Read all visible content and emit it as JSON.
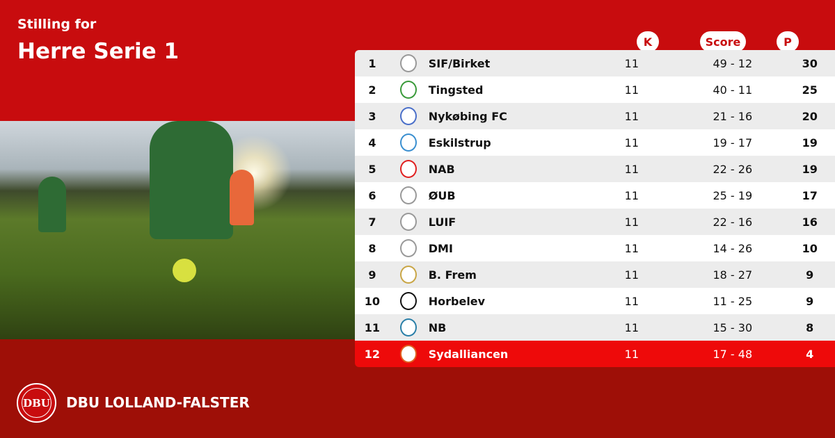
{
  "header": {
    "subtitle": "Stilling for",
    "title": "Herre Serie 1"
  },
  "columns": {
    "k": "K",
    "score": "Score",
    "p": "P"
  },
  "colors": {
    "top": "#c80c0e",
    "bottom": "#9e0f07",
    "highlight": "#ee0a0a"
  },
  "rows": [
    {
      "pos": "1",
      "team": "SIF/Birket",
      "k": "11",
      "score": "49 - 12",
      "p": "30",
      "logo": "#999"
    },
    {
      "pos": "2",
      "team": "Tingsted",
      "k": "11",
      "score": "40 - 11",
      "p": "25",
      "logo": "#3a9a3a"
    },
    {
      "pos": "3",
      "team": "Nykøbing FC",
      "k": "11",
      "score": "21 - 16",
      "p": "20",
      "logo": "#4a6fc9"
    },
    {
      "pos": "4",
      "team": "Eskilstrup",
      "k": "11",
      "score": "19 - 17",
      "p": "19",
      "logo": "#3a8fd0"
    },
    {
      "pos": "5",
      "team": "NAB",
      "k": "11",
      "score": "22 - 26",
      "p": "19",
      "logo": "#e02020"
    },
    {
      "pos": "6",
      "team": "ØUB",
      "k": "11",
      "score": "25 - 19",
      "p": "17",
      "logo": "#999"
    },
    {
      "pos": "7",
      "team": "LUIF",
      "k": "11",
      "score": "22 - 16",
      "p": "16",
      "logo": "#999"
    },
    {
      "pos": "8",
      "team": "DMI",
      "k": "11",
      "score": "14 - 26",
      "p": "10",
      "logo": "#999"
    },
    {
      "pos": "9",
      "team": "B. Frem",
      "k": "11",
      "score": "18 - 27",
      "p": "9",
      "logo": "#c9a646"
    },
    {
      "pos": "10",
      "team": "Horbelev",
      "k": "11",
      "score": "11 - 25",
      "p": "9",
      "logo": "#111"
    },
    {
      "pos": "11",
      "team": "NB",
      "k": "11",
      "score": "15 - 30",
      "p": "8",
      "logo": "#2a7fa8"
    },
    {
      "pos": "12",
      "team": "Sydalliancen",
      "k": "11",
      "score": "17 - 48",
      "p": "4",
      "logo": "#e06020",
      "highlight": true
    }
  ],
  "footer": {
    "org": "DBU LOLLAND-FALSTER",
    "emblem": "DBU"
  }
}
